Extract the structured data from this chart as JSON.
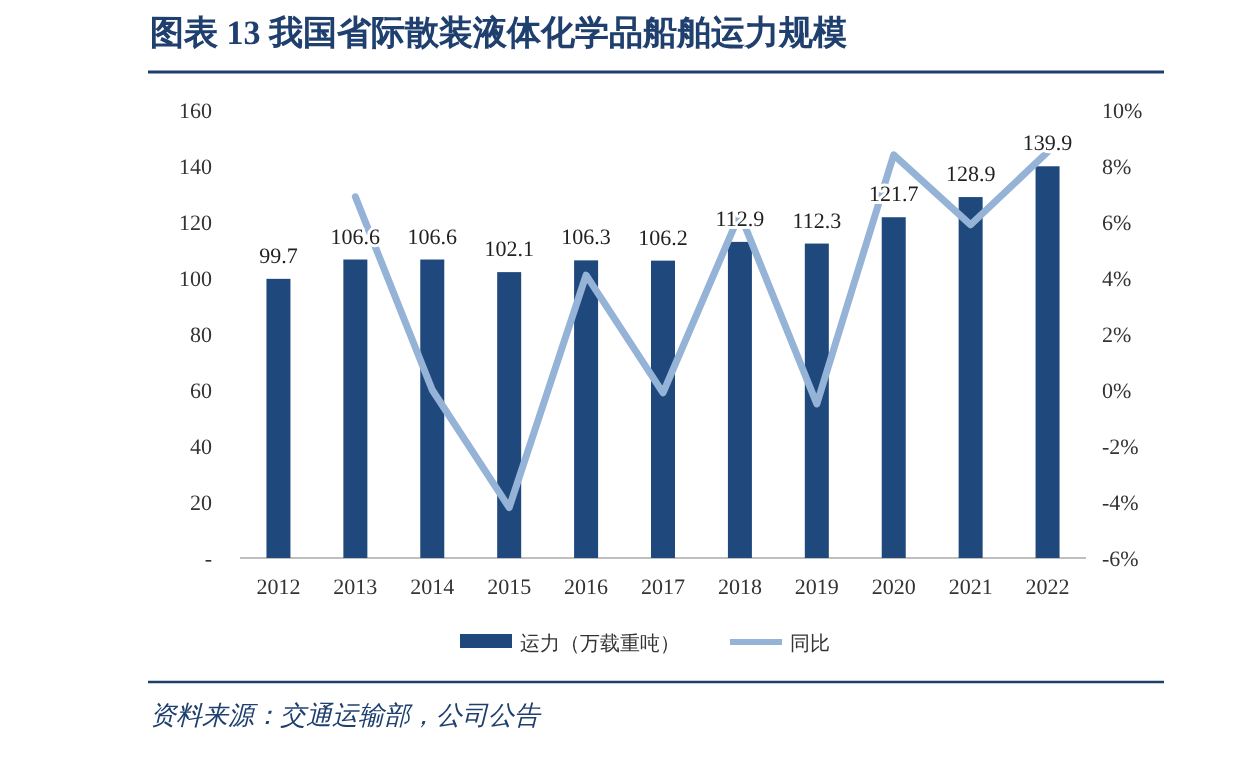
{
  "chart_data": {
    "type": "bar",
    "title": "图表 13  我国省际散装液体化学品船舶运力规模",
    "annotations": [
      "资料来源：交通运输部，公司公告"
    ],
    "categories": [
      "2012",
      "2013",
      "2014",
      "2015",
      "2016",
      "2017",
      "2018",
      "2019",
      "2020",
      "2021",
      "2022"
    ],
    "series": [
      {
        "name": "运力（万载重吨）",
        "color": "#1f497d",
        "values": [
          99.7,
          106.6,
          106.6,
          102.1,
          106.3,
          106.2,
          112.9,
          112.3,
          121.7,
          128.9,
          139.9
        ],
        "value_labels": [
          "99.7",
          "106.6",
          "106.6",
          "102.1",
          "106.3",
          "106.2",
          "112.9",
          "112.3",
          "121.7",
          "128.9",
          "139.9"
        ]
      },
      {
        "name": "同比",
        "type": "line",
        "axis": "y2",
        "color": "#95b3d7",
        "values": [
          null,
          6.9,
          0.0,
          -4.2,
          4.1,
          -0.1,
          6.3,
          -0.5,
          8.4,
          5.9,
          8.5
        ]
      }
    ],
    "ylim": [
      0,
      160
    ],
    "yticks": [
      {
        "value": 0,
        "label": "-"
      },
      20,
      40,
      60,
      80,
      100,
      120,
      140,
      160
    ],
    "y2lim": [
      -6,
      10
    ],
    "y2ticks": [
      {
        "value": -6,
        "label": "-6%"
      },
      {
        "value": -4,
        "label": "-4%"
      },
      {
        "value": -2,
        "label": "-2%"
      },
      {
        "value": 0,
        "label": "0%"
      },
      {
        "value": 2,
        "label": "2%"
      },
      {
        "value": 4,
        "label": "4%"
      },
      {
        "value": 6,
        "label": "6%"
      },
      {
        "value": 8,
        "label": "8%"
      },
      {
        "value": 10,
        "label": "10%"
      }
    ],
    "grid": false,
    "legend": "bottom"
  }
}
